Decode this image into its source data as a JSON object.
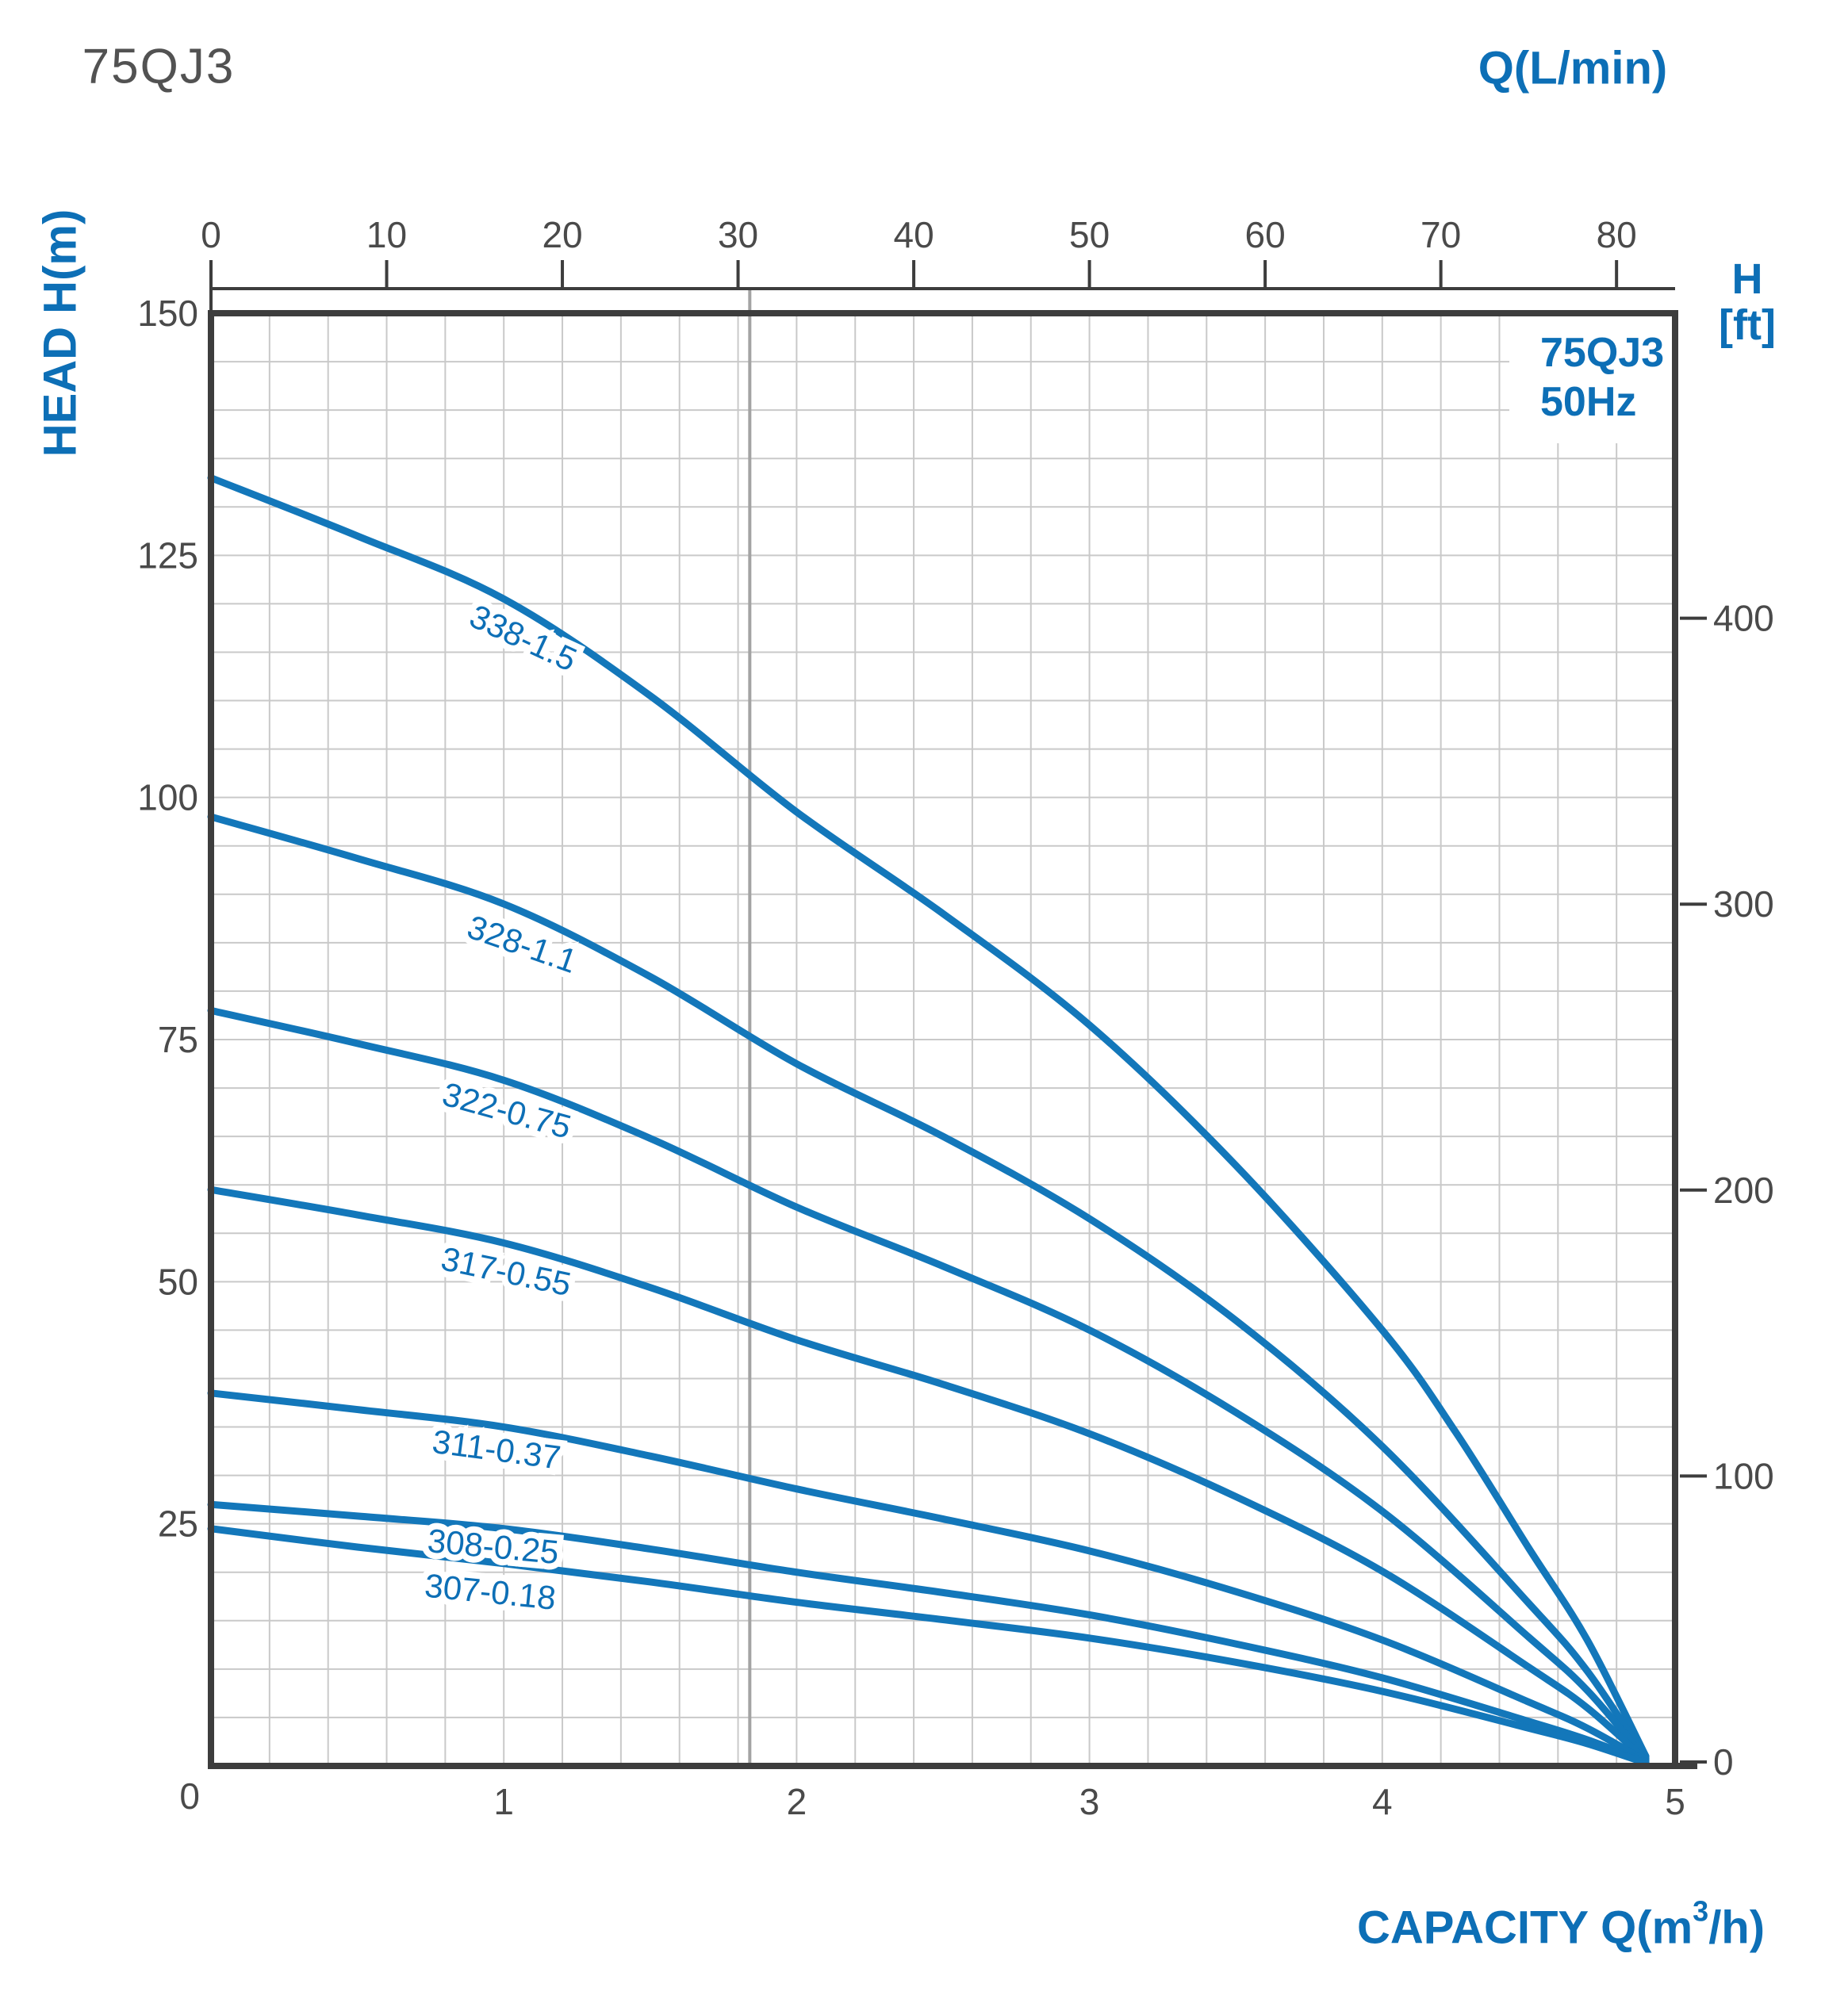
{
  "page": {
    "title": "75QJ3"
  },
  "chart_data": {
    "type": "line",
    "title": "75QJ3",
    "inset": {
      "model": "75QJ3",
      "frequency": "50Hz"
    },
    "axes": {
      "top": {
        "label": "Q(L/min)",
        "ticks": [
          0,
          10,
          20,
          30,
          40,
          50,
          60,
          70,
          80
        ],
        "range": [
          0,
          83.3
        ]
      },
      "bottom": {
        "label_prefix": "CAPACITY Q(m",
        "label_sup": "3",
        "label_suffix": "/h)",
        "ticks": [
          0,
          1,
          2,
          3,
          4,
          5
        ],
        "range": [
          0,
          5
        ],
        "minor_step": 0.2
      },
      "left": {
        "label": "HEAD H(m)",
        "ticks": [
          150,
          125,
          100,
          75,
          50,
          25
        ],
        "corner_tick": "0",
        "range": [
          0,
          150
        ],
        "minor_step": 5
      },
      "right": {
        "label_line1": "H",
        "label_line2": "[ft]",
        "ticks": [
          400,
          300,
          200,
          100,
          0
        ]
      }
    },
    "grid": {
      "on": true
    },
    "reference_line_q": 1.84,
    "series": [
      {
        "name": "338-1.5",
        "label_q": 1.05,
        "label_offset": 50,
        "points": [
          [
            0,
            133
          ],
          [
            0.5,
            127
          ],
          [
            1,
            120.5
          ],
          [
            1.5,
            110.5
          ],
          [
            2,
            98.5
          ],
          [
            2.5,
            88
          ],
          [
            3,
            76.5
          ],
          [
            3.5,
            62
          ],
          [
            4,
            45
          ],
          [
            4.25,
            34.5
          ],
          [
            4.5,
            22.5
          ],
          [
            4.7,
            13
          ],
          [
            4.9,
            1
          ]
        ]
      },
      {
        "name": "328-1.1",
        "label_q": 1.05,
        "label_offset": 55,
        "points": [
          [
            0,
            98
          ],
          [
            0.5,
            93.7
          ],
          [
            1,
            89
          ],
          [
            1.5,
            81.5
          ],
          [
            2,
            72.5
          ],
          [
            2.5,
            65
          ],
          [
            3,
            56.5
          ],
          [
            3.5,
            46
          ],
          [
            4,
            33
          ],
          [
            4.5,
            16.8
          ],
          [
            4.7,
            9.8
          ],
          [
            4.9,
            0.8
          ]
        ]
      },
      {
        "name": "322-0.75",
        "label_q": 1.0,
        "label_offset": 52,
        "points": [
          [
            0,
            78
          ],
          [
            0.5,
            74.6
          ],
          [
            1,
            70.8
          ],
          [
            1.5,
            64.8
          ],
          [
            2,
            57.7
          ],
          [
            2.5,
            51.6
          ],
          [
            3,
            45
          ],
          [
            3.5,
            36.5
          ],
          [
            4,
            26.3
          ],
          [
            4.5,
            13.3
          ],
          [
            4.7,
            7.8
          ],
          [
            4.9,
            0.7
          ]
        ]
      },
      {
        "name": "317-0.55",
        "label_q": 1.0,
        "label_offset": 50,
        "points": [
          [
            0,
            59.5
          ],
          [
            0.5,
            56.9
          ],
          [
            1,
            54
          ],
          [
            1.5,
            49.4
          ],
          [
            2,
            44
          ],
          [
            2.5,
            39.4
          ],
          [
            3,
            34.3
          ],
          [
            3.5,
            27.8
          ],
          [
            4,
            20.1
          ],
          [
            4.5,
            10.2
          ],
          [
            4.7,
            6
          ],
          [
            4.9,
            0.6
          ]
        ]
      },
      {
        "name": "311-0.37",
        "label_q": 0.97,
        "label_offset": 44,
        "points": [
          [
            0,
            38.5
          ],
          [
            0.5,
            36.8
          ],
          [
            1,
            35
          ],
          [
            1.5,
            32
          ],
          [
            2,
            28.6
          ],
          [
            2.5,
            25.5
          ],
          [
            3,
            22.2
          ],
          [
            3.5,
            18
          ],
          [
            4,
            13
          ],
          [
            4.5,
            6.6
          ],
          [
            4.7,
            3.9
          ],
          [
            4.9,
            0.5
          ]
        ]
      },
      {
        "name": "308-0.25",
        "label_q": 0.96,
        "label_offset": 38,
        "points": [
          [
            0,
            27
          ],
          [
            0.5,
            25.8
          ],
          [
            1,
            24.5
          ],
          [
            1.5,
            22.4
          ],
          [
            2,
            20
          ],
          [
            2.5,
            17.9
          ],
          [
            3,
            15.6
          ],
          [
            3.5,
            12.6
          ],
          [
            4,
            9.1
          ],
          [
            4.5,
            4.6
          ],
          [
            4.7,
            2.7
          ],
          [
            4.9,
            0.4
          ]
        ]
      },
      {
        "name": "307-0.18",
        "label_q": 0.95,
        "label_offset": 52,
        "points": [
          [
            0,
            24.5
          ],
          [
            0.5,
            22.6
          ],
          [
            1,
            20.9
          ],
          [
            1.5,
            19
          ],
          [
            2,
            16.9
          ],
          [
            2.5,
            15.1
          ],
          [
            3,
            13.2
          ],
          [
            3.5,
            10.7
          ],
          [
            4,
            7.7
          ],
          [
            4.5,
            3.9
          ],
          [
            4.7,
            2.3
          ],
          [
            4.9,
            0.3
          ]
        ]
      }
    ],
    "colors": {
      "curve": "#1377ba",
      "blue_text": "#0d6fb6",
      "tick_text": "#4a4a4a",
      "grid": "#c9c9c9",
      "border": "#3d3d3d",
      "reference_line": "#a3a3a3"
    }
  }
}
